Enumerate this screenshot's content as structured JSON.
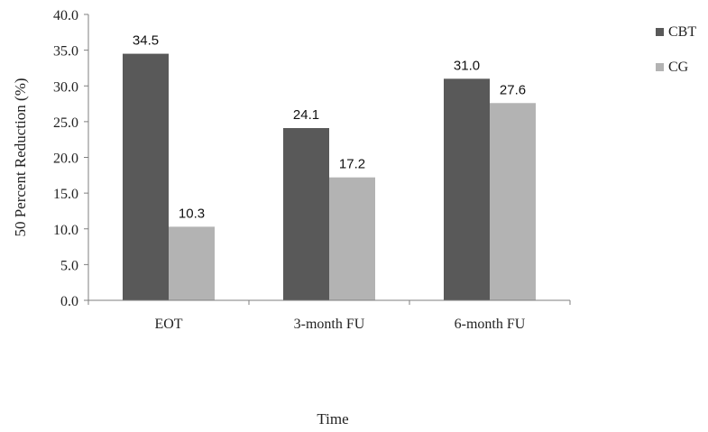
{
  "chart_data": {
    "type": "bar",
    "title": "",
    "xlabel": "Time",
    "ylabel": "50 Percent Reduction (%)",
    "ylim": [
      0,
      40
    ],
    "yticks": [
      "0.0",
      "5.0",
      "10.0",
      "15.0",
      "20.0",
      "25.0",
      "30.0",
      "35.0",
      "40.0"
    ],
    "grid": false,
    "legend_position": "right",
    "categories": [
      "EOT",
      "3-month FU",
      "6-month FU"
    ],
    "series": [
      {
        "name": "CBT",
        "color": "#595959",
        "values": [
          34.5,
          24.1,
          31.0
        ],
        "labels": [
          "34.5",
          "24.1",
          "31.0"
        ]
      },
      {
        "name": "CG",
        "color": "#b3b3b3",
        "values": [
          10.3,
          17.2,
          27.6
        ],
        "labels": [
          "10.3",
          "17.2",
          "27.6"
        ]
      }
    ]
  }
}
